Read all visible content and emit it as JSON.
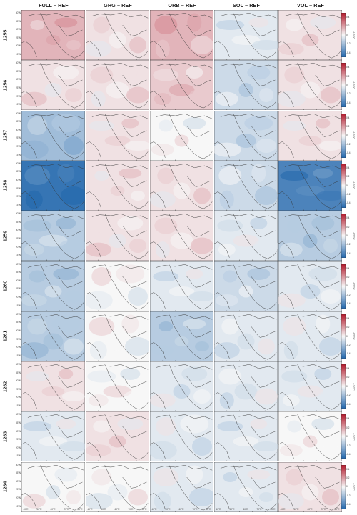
{
  "chart_data": {
    "type": "heatmap",
    "colorbar_label": "ΔT/°C",
    "colorbar_ticks": [
      "0.4",
      "0.2",
      "0",
      "-0.2",
      "-0.4"
    ],
    "color_range": [
      -0.5,
      0.5
    ],
    "colormap": {
      "negative": "#2166ac",
      "zero": "#f7f7f7",
      "positive": "#b2182b"
    },
    "columns": [
      "FULL – REF",
      "GHG – REF",
      "ORB – REF",
      "SOL – REF",
      "VOL – REF"
    ],
    "rows": [
      "1255",
      "1256",
      "1257",
      "1258",
      "1259",
      "1260",
      "1261",
      "1262",
      "1263",
      "1264"
    ],
    "lat_ticks": [
      "40°N",
      "35°N",
      "30°N",
      "25°N",
      "20°N",
      "15°N"
    ],
    "lon_ticks": [
      "40°E",
      "50°E",
      "60°E",
      "70°E",
      "80°E"
    ],
    "mean_anomaly": [
      [
        0.15,
        0.05,
        0.15,
        -0.05,
        0.05
      ],
      [
        0.05,
        0.05,
        0.1,
        -0.1,
        0.05
      ],
      [
        -0.2,
        0.05,
        0.0,
        -0.1,
        0.05
      ],
      [
        -0.45,
        0.05,
        0.05,
        -0.1,
        -0.4
      ],
      [
        -0.15,
        0.05,
        0.05,
        -0.05,
        -0.15
      ],
      [
        -0.15,
        0.0,
        -0.05,
        -0.1,
        -0.05
      ],
      [
        -0.15,
        0.0,
        -0.15,
        -0.05,
        -0.05
      ],
      [
        0.05,
        0.0,
        -0.05,
        -0.05,
        -0.05
      ],
      [
        -0.05,
        0.05,
        -0.05,
        -0.05,
        0.0
      ],
      [
        0.0,
        0.0,
        -0.05,
        -0.05,
        0.05
      ]
    ]
  }
}
